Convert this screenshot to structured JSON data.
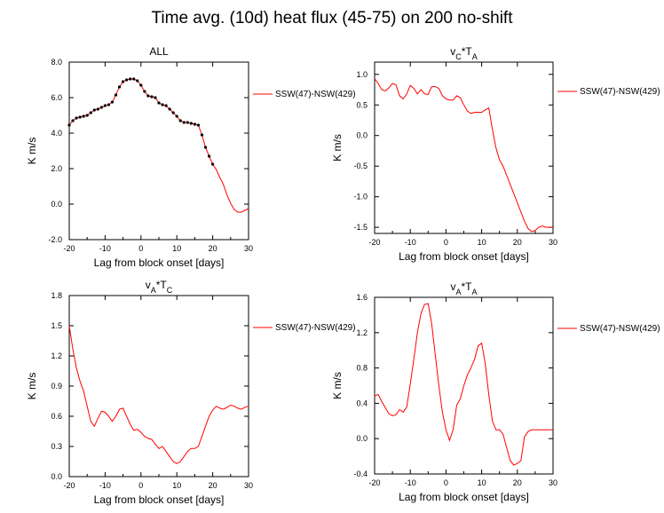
{
  "page": {
    "title": "Time avg. (10d) heat flux (45-75) on 200 no-shift"
  },
  "colors": {
    "series": "#ff0000",
    "axis": "#000000",
    "marker": "#000000"
  },
  "chart_data": [
    {
      "type": "line",
      "title": "ALL",
      "title_parts": [
        {
          "text": "ALL"
        }
      ],
      "xlabel": "Lag from block onset [days]",
      "ylabel": "K m/s",
      "xlim": [
        -20,
        30
      ],
      "ylim": [
        -2,
        8
      ],
      "xticks": [
        -20,
        -10,
        0,
        10,
        20,
        30
      ],
      "xtick_labels": [
        "-20",
        "-10",
        "0",
        "10",
        "20",
        "30"
      ],
      "yticks": [
        -2,
        0,
        2,
        4,
        6,
        8
      ],
      "ytick_labels": [
        "-2.0",
        "0.0",
        "2.0",
        "4.0",
        "6.0",
        "8.0"
      ],
      "legend": {
        "placement": "right",
        "entries": [
          "SSW(47)-NSW(429)"
        ]
      },
      "grid": false,
      "markers": {
        "x_range": [
          -20,
          20
        ]
      },
      "series": [
        {
          "name": "SSW(47)-NSW(429)",
          "x": [
            -20,
            -19,
            -18,
            -17,
            -16,
            -15,
            -14,
            -13,
            -12,
            -11,
            -10,
            -9,
            -8,
            -7,
            -6,
            -5,
            -4,
            -3,
            -2,
            -1,
            0,
            1,
            2,
            3,
            4,
            5,
            6,
            7,
            8,
            9,
            10,
            11,
            12,
            13,
            14,
            15,
            16,
            17,
            18,
            19,
            20,
            21,
            22,
            23,
            24,
            25,
            26,
            27,
            28,
            29,
            30
          ],
          "y": [
            4.45,
            4.7,
            4.85,
            4.9,
            4.95,
            5.0,
            5.15,
            5.3,
            5.35,
            5.45,
            5.55,
            5.6,
            5.75,
            6.15,
            6.6,
            6.9,
            7.0,
            7.05,
            7.05,
            6.95,
            6.7,
            6.35,
            6.1,
            6.05,
            6.0,
            5.7,
            5.6,
            5.55,
            5.35,
            5.15,
            4.95,
            4.7,
            4.6,
            4.6,
            4.55,
            4.5,
            4.45,
            3.9,
            3.2,
            2.7,
            2.25,
            1.95,
            1.5,
            1.1,
            0.5,
            0.05,
            -0.3,
            -0.45,
            -0.45,
            -0.35,
            -0.25
          ]
        }
      ]
    },
    {
      "type": "line",
      "title": "vC*TA",
      "title_parts": [
        {
          "text": "v"
        },
        {
          "text": "C",
          "sub": true
        },
        {
          "text": "*T"
        },
        {
          "text": "A",
          "sub": true
        }
      ],
      "xlabel": "Lag from block onset [days]",
      "ylabel": "K m/s",
      "xlim": [
        -20,
        30
      ],
      "ylim": [
        -1.6,
        1.2
      ],
      "xticks": [
        -20,
        -10,
        0,
        10,
        20,
        30
      ],
      "xtick_labels": [
        "-20",
        "-10",
        "0",
        "10",
        "20",
        "30"
      ],
      "yticks": [
        -1.5,
        -1.0,
        -0.5,
        0.0,
        0.5,
        1.0
      ],
      "ytick_labels": [
        "-1.5",
        "-1.0",
        "-0.5",
        "0.0",
        "0.5",
        "1.0"
      ],
      "legend": {
        "placement": "right",
        "entries": [
          "SSW(47)-NSW(429)"
        ]
      },
      "grid": false,
      "series": [
        {
          "name": "SSW(47)-NSW(429)",
          "x": [
            -20,
            -19,
            -18,
            -17,
            -16,
            -15,
            -14,
            -13,
            -12,
            -11,
            -10,
            -9,
            -8,
            -7,
            -6,
            -5,
            -4,
            -3,
            -2,
            -1,
            0,
            1,
            2,
            3,
            4,
            5,
            6,
            7,
            8,
            9,
            10,
            11,
            12,
            13,
            14,
            15,
            16,
            17,
            18,
            19,
            20,
            21,
            22,
            23,
            24,
            25,
            26,
            27,
            28,
            29,
            30
          ],
          "y": [
            0.93,
            0.85,
            0.75,
            0.73,
            0.78,
            0.85,
            0.83,
            0.65,
            0.6,
            0.68,
            0.82,
            0.77,
            0.68,
            0.75,
            0.68,
            0.67,
            0.8,
            0.8,
            0.77,
            0.65,
            0.6,
            0.58,
            0.58,
            0.65,
            0.62,
            0.5,
            0.4,
            0.36,
            0.38,
            0.38,
            0.38,
            0.42,
            0.45,
            0.1,
            -0.2,
            -0.4,
            -0.5,
            -0.65,
            -0.8,
            -0.95,
            -1.1,
            -1.25,
            -1.4,
            -1.52,
            -1.57,
            -1.55,
            -1.5,
            -1.48,
            -1.5,
            -1.5,
            -1.5
          ]
        }
      ]
    },
    {
      "type": "line",
      "title": "vA*TC",
      "title_parts": [
        {
          "text": "v"
        },
        {
          "text": "A",
          "sub": true
        },
        {
          "text": "*T"
        },
        {
          "text": "C",
          "sub": true
        }
      ],
      "xlabel": "Lag from block onset [days]",
      "ylabel": "K m/s",
      "xlim": [
        -20,
        30
      ],
      "ylim": [
        0.0,
        1.8
      ],
      "xticks": [
        -20,
        -10,
        0,
        10,
        20,
        30
      ],
      "xtick_labels": [
        "-20",
        "-10",
        "0",
        "10",
        "20",
        "30"
      ],
      "yticks": [
        0.0,
        0.3,
        0.6,
        0.9,
        1.2,
        1.5,
        1.8
      ],
      "ytick_labels": [
        "0.0",
        "0.3",
        "0.6",
        "0.9",
        "1.2",
        "1.5",
        "1.8"
      ],
      "legend": {
        "placement": "right",
        "entries": [
          "SSW(47)-NSW(429)"
        ]
      },
      "grid": false,
      "series": [
        {
          "name": "SSW(47)-NSW(429)",
          "x": [
            -20,
            -19,
            -18,
            -17,
            -16,
            -15,
            -14,
            -13,
            -12,
            -11,
            -10,
            -9,
            -8,
            -7,
            -6,
            -5,
            -4,
            -3,
            -2,
            -1,
            0,
            1,
            2,
            3,
            4,
            5,
            6,
            7,
            8,
            9,
            10,
            11,
            12,
            13,
            14,
            15,
            16,
            17,
            18,
            19,
            20,
            21,
            22,
            23,
            24,
            25,
            26,
            27,
            28,
            29,
            30
          ],
          "y": [
            1.5,
            1.27,
            1.08,
            0.95,
            0.85,
            0.7,
            0.55,
            0.5,
            0.58,
            0.65,
            0.64,
            0.6,
            0.55,
            0.6,
            0.67,
            0.68,
            0.6,
            0.52,
            0.46,
            0.47,
            0.44,
            0.4,
            0.38,
            0.37,
            0.32,
            0.28,
            0.3,
            0.25,
            0.2,
            0.15,
            0.13,
            0.15,
            0.2,
            0.25,
            0.28,
            0.28,
            0.3,
            0.4,
            0.5,
            0.6,
            0.66,
            0.7,
            0.68,
            0.67,
            0.69,
            0.71,
            0.7,
            0.68,
            0.67,
            0.69,
            0.7
          ]
        }
      ]
    },
    {
      "type": "line",
      "title": "vA*TA",
      "title_parts": [
        {
          "text": "v"
        },
        {
          "text": "A",
          "sub": true
        },
        {
          "text": "*T"
        },
        {
          "text": "A",
          "sub": true
        }
      ],
      "xlabel": "Lag from block onset [days]",
      "ylabel": "K m/s",
      "xlim": [
        -20,
        30
      ],
      "ylim": [
        -0.4,
        1.6
      ],
      "xticks": [
        -20,
        -10,
        0,
        10,
        20,
        30
      ],
      "xtick_labels": [
        "-20",
        "-10",
        "0",
        "10",
        "20",
        "30"
      ],
      "yticks": [
        -0.4,
        0.0,
        0.4,
        0.8,
        1.2,
        1.6
      ],
      "ytick_labels": [
        "-0.4",
        "0.0",
        "0.4",
        "0.8",
        "1.2",
        "1.6"
      ],
      "legend": {
        "placement": "right",
        "entries": [
          "SSW(47)-NSW(429)"
        ]
      },
      "grid": false,
      "series": [
        {
          "name": "SSW(47)-NSW(429)",
          "x": [
            -20,
            -19,
            -18,
            -17,
            -16,
            -15,
            -14,
            -13,
            -12,
            -11,
            -10,
            -9,
            -8,
            -7,
            -6,
            -5,
            -4,
            -3,
            -2,
            -1,
            0,
            1,
            2,
            3,
            4,
            5,
            6,
            7,
            8,
            9,
            10,
            11,
            12,
            13,
            14,
            15,
            16,
            17,
            18,
            19,
            20,
            21,
            22,
            23,
            24,
            25,
            26,
            27,
            28,
            29,
            30
          ],
          "y": [
            0.48,
            0.5,
            0.42,
            0.35,
            0.28,
            0.26,
            0.27,
            0.33,
            0.3,
            0.36,
            0.62,
            0.9,
            1.2,
            1.42,
            1.52,
            1.53,
            1.3,
            0.95,
            0.6,
            0.3,
            0.1,
            -0.02,
            0.1,
            0.38,
            0.45,
            0.6,
            0.72,
            0.8,
            0.9,
            1.05,
            1.08,
            0.85,
            0.5,
            0.2,
            0.1,
            0.1,
            0.05,
            -0.1,
            -0.25,
            -0.3,
            -0.28,
            -0.25,
            0.02,
            0.08,
            0.1,
            0.1,
            0.1,
            0.1,
            0.1,
            0.1,
            0.1
          ]
        }
      ]
    }
  ]
}
